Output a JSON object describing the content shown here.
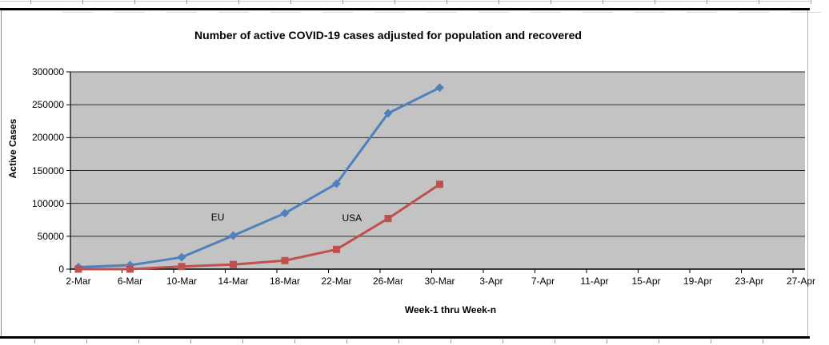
{
  "chart_data": {
    "type": "line",
    "title": "Number of active COVID-19 cases adjusted for population and recovered",
    "xlabel": "Week-1 thru Week-n",
    "ylabel": "Active Cases",
    "categories": [
      "2-Mar",
      "6-Mar",
      "10-Mar",
      "14-Mar",
      "18-Mar",
      "22-Mar",
      "26-Mar",
      "30-Mar",
      "3-Apr",
      "7-Apr",
      "11-Apr",
      "15-Apr",
      "19-Apr",
      "23-Apr",
      "27-Apr"
    ],
    "y_ticklabels": [
      "0",
      "50000",
      "100000",
      "150000",
      "200000",
      "250000",
      "300000"
    ],
    "ylim": [
      0,
      300000
    ],
    "ytick_step": 50000,
    "grid": true,
    "legend_position": "none",
    "plot_bg_color": "#c3c3c3",
    "gridline_color": "#2a2a2a",
    "series": [
      {
        "name": "EU",
        "color": "#4f81bd",
        "marker": "diamond",
        "values": [
          3000,
          6000,
          18000,
          51000,
          85000,
          130000,
          237000,
          276000
        ]
      },
      {
        "name": "USA",
        "color": "#c0504d",
        "marker": "square",
        "values": [
          0,
          0,
          4000,
          7000,
          13000,
          30000,
          77000,
          129000
        ]
      }
    ],
    "annotations": [
      {
        "text": "EU",
        "x_category": 2.7,
        "y_value": 79000
      },
      {
        "text": "USA",
        "x_category": 5.3,
        "y_value": 78000
      }
    ]
  }
}
